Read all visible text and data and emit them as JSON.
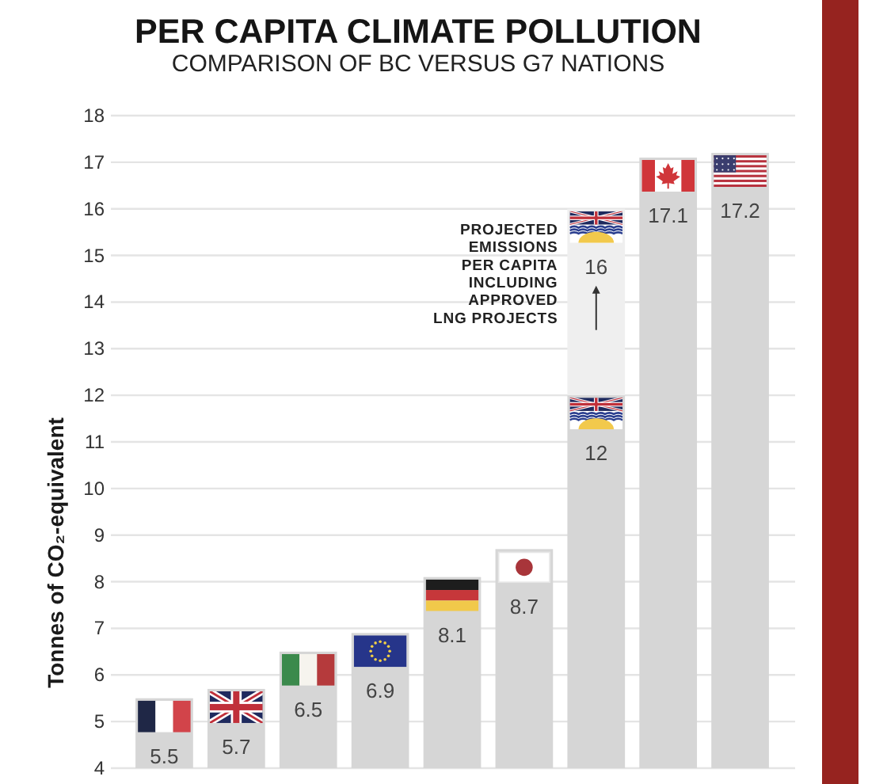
{
  "chart_data": {
    "type": "bar",
    "title": "PER CAPITA CLIMATE POLLUTION",
    "subtitle": "COMPARISON OF BC VERSUS G7 NATIONS",
    "ylabel": "Tonnes of CO₂-equivalent",
    "categories": [
      null,
      null,
      null,
      null,
      null,
      null,
      null,
      null,
      null
    ],
    "stacked": true,
    "series": [
      {
        "color": "#d6d6d6",
        "values": [
          5.5,
          5.7,
          6.5,
          6.9,
          8.1,
          8.7,
          12,
          17.1,
          17.2
        ],
        "value_labels": [
          "5.5",
          "5.7",
          "6.5",
          "6.9",
          "8.1",
          "8.7",
          "12",
          "17.1",
          "17.2"
        ]
      },
      {
        "color": "#efefef",
        "values": [
          null,
          null,
          null,
          null,
          null,
          null,
          4,
          null,
          null
        ]
      }
    ],
    "totals": [
      null,
      null,
      null,
      null,
      null,
      null,
      "16",
      null,
      null
    ],
    "ylim": [
      4,
      18
    ],
    "yticks": [
      4,
      5,
      6,
      7,
      8,
      9,
      10,
      11,
      12,
      13,
      14,
      15,
      16,
      17,
      18
    ],
    "grid": "y",
    "tick_labels": "y",
    "annotations": [
      "PROJECTED\nEMISSIONS\nPER CAPITA\nINCLUDING\nAPPROVED\nLNG PROJECTS"
    ]
  }
}
